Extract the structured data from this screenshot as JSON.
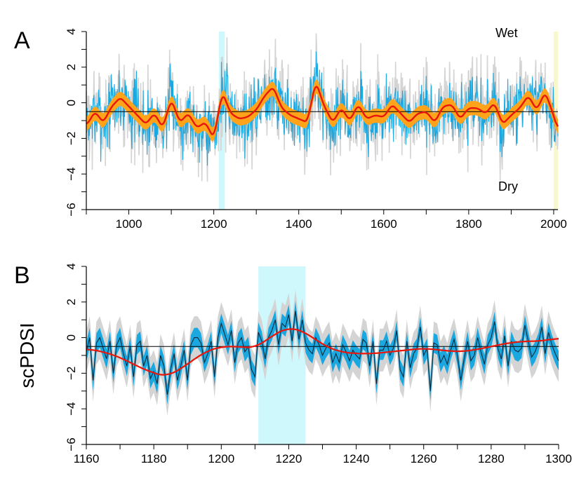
{
  "figure": {
    "ylabel": "scPDSI",
    "colors": {
      "envelope_gray": "#d4d4d4",
      "annual_blue": "#1ba8e0",
      "smooth_band_orange": "#ffa31a",
      "smooth_line_red": "#e8170c",
      "highlight_cyan": "#cff8fc",
      "highlight_yellow": "#f8f8cc",
      "panel_b_line": "#0a2a3a",
      "reference_line": "#000000"
    }
  },
  "chart_data": [
    {
      "type": "line",
      "panel_label": "A",
      "xlabel": "",
      "ylabel": "scPDSI",
      "xlim": [
        900,
        2010
      ],
      "ylim": [
        -6,
        4
      ],
      "x_ticks": [
        "1000",
        "1200",
        "1400",
        "1600",
        "1800",
        "2000"
      ],
      "y_ticks": [
        "4",
        "2",
        "0",
        "−2",
        "−4",
        "−6"
      ],
      "grid": false,
      "reference_line_y": -0.5,
      "annotations": [
        {
          "text": "Wet",
          "x": 1890,
          "y": 3.8
        },
        {
          "text": "Dry",
          "x": 1890,
          "y": -4.9
        }
      ],
      "highlight_spans": [
        {
          "x0": 1212,
          "x1": 1226,
          "color": "cyan"
        },
        {
          "x0": 2000,
          "x1": 2010,
          "color": "yellow"
        }
      ],
      "series": [
        {
          "name": "",
          "style": "red line with orange uncertainty band; annual values in blue with gray envelope",
          "x": [
            900,
            920,
            940,
            960,
            980,
            1000,
            1020,
            1040,
            1060,
            1080,
            1100,
            1120,
            1140,
            1160,
            1180,
            1200,
            1220,
            1240,
            1260,
            1280,
            1300,
            1320,
            1340,
            1360,
            1380,
            1400,
            1420,
            1440,
            1460,
            1480,
            1500,
            1520,
            1540,
            1560,
            1580,
            1600,
            1620,
            1640,
            1660,
            1680,
            1700,
            1720,
            1740,
            1760,
            1780,
            1800,
            1820,
            1840,
            1860,
            1880,
            1900,
            1920,
            1940,
            1960,
            1980,
            2000,
            2010
          ],
          "values": [
            -1.3,
            -0.5,
            -1.1,
            -0.2,
            0.3,
            -0.2,
            -0.7,
            -1.2,
            -0.6,
            -1.4,
            0.2,
            -1.1,
            -0.6,
            -1.4,
            -1.1,
            -2.0,
            0.6,
            -0.6,
            -0.9,
            -0.8,
            -0.4,
            0.4,
            0.9,
            -0.3,
            -0.7,
            -0.9,
            -1.1,
            1.2,
            -0.2,
            -1.1,
            -0.3,
            -1.0,
            -0.1,
            -0.9,
            -0.7,
            -0.8,
            -0.1,
            -0.6,
            -1.1,
            -0.6,
            -0.5,
            -1.1,
            -0.2,
            -0.1,
            -0.9,
            -0.3,
            -0.3,
            -0.6,
            0.0,
            -1.2,
            -0.7,
            -0.3,
            0.4,
            -0.4,
            0.6,
            -0.7,
            -1.6
          ],
          "band_halfwidth": 0.4,
          "annual_amplitude": 2.4,
          "envelope_amplitude": 3.5
        }
      ]
    },
    {
      "type": "line",
      "panel_label": "B",
      "xlabel": "",
      "ylabel": "scPDSI",
      "xlim": [
        1160,
        1300
      ],
      "ylim": [
        -6,
        4
      ],
      "x_ticks": [
        "1160",
        "1180",
        "1200",
        "1220",
        "1240",
        "1260",
        "1280",
        "1300"
      ],
      "y_ticks": [
        "4",
        "2",
        "0",
        "−2",
        "−4",
        "−6"
      ],
      "grid": false,
      "reference_line_y": -0.5,
      "highlight_spans": [
        {
          "x0": 1211,
          "x1": 1225,
          "color": "cyan"
        }
      ],
      "series": [
        {
          "name": "",
          "style": "dark annual line with blue band and gray envelope",
          "x": [
            1160,
            1161,
            1162,
            1163,
            1164,
            1165,
            1166,
            1167,
            1168,
            1169,
            1170,
            1171,
            1172,
            1173,
            1174,
            1175,
            1176,
            1177,
            1178,
            1179,
            1180,
            1181,
            1182,
            1183,
            1184,
            1185,
            1186,
            1187,
            1188,
            1189,
            1190,
            1191,
            1192,
            1193,
            1194,
            1195,
            1196,
            1197,
            1198,
            1199,
            1200,
            1201,
            1202,
            1203,
            1204,
            1205,
            1206,
            1207,
            1208,
            1209,
            1210,
            1211,
            1212,
            1213,
            1214,
            1215,
            1216,
            1217,
            1218,
            1219,
            1220,
            1221,
            1222,
            1223,
            1224,
            1225,
            1226,
            1227,
            1228,
            1229,
            1230,
            1231,
            1232,
            1233,
            1234,
            1235,
            1236,
            1237,
            1238,
            1239,
            1240,
            1241,
            1242,
            1243,
            1244,
            1245,
            1246,
            1247,
            1248,
            1249,
            1250,
            1251,
            1252,
            1253,
            1254,
            1255,
            1256,
            1257,
            1258,
            1259,
            1260,
            1261,
            1262,
            1263,
            1264,
            1265,
            1266,
            1267,
            1268,
            1269,
            1270,
            1271,
            1272,
            1273,
            1274,
            1275,
            1276,
            1277,
            1278,
            1279,
            1280,
            1281,
            1282,
            1283,
            1284,
            1285,
            1286,
            1287,
            1288,
            1289,
            1290,
            1291,
            1292,
            1293,
            1294,
            1295,
            1296,
            1297,
            1298,
            1299,
            1300
          ],
          "values": [
            -0.8,
            0.0,
            -2.4,
            -0.3,
            0.0,
            -0.6,
            -1.2,
            -0.2,
            -2.0,
            -0.4,
            0.0,
            -0.9,
            -1.6,
            -0.5,
            -2.2,
            -0.4,
            -0.2,
            -1.6,
            -1.0,
            -2.3,
            -1.9,
            -2.6,
            -1.0,
            -1.6,
            -3.2,
            -1.8,
            -0.9,
            -2.4,
            -1.6,
            -0.7,
            -2.4,
            -0.4,
            0.0,
            0.0,
            -0.3,
            -1.4,
            -0.9,
            -0.2,
            -2.2,
            0.0,
            0.8,
            0.2,
            -0.4,
            0.4,
            -1.4,
            -0.3,
            0.0,
            -0.8,
            -0.5,
            -1.8,
            -2.2,
            0.3,
            -0.2,
            -1.2,
            0.0,
            0.4,
            1.0,
            -0.4,
            0.8,
            0.6,
            1.3,
            -0.2,
            1.5,
            -0.1,
            1.0,
            -0.3,
            -0.7,
            -0.9,
            0.0,
            -0.4,
            -1.0,
            -0.6,
            -0.3,
            -1.4,
            -0.9,
            -1.4,
            -0.4,
            -0.8,
            -1.3,
            -0.7,
            -1.0,
            -1.2,
            -0.1,
            -0.3,
            -1.6,
            -0.2,
            -2.6,
            -0.7,
            -0.7,
            -0.2,
            -1.0,
            -0.6,
            0.4,
            -1.8,
            -2.2,
            -0.2,
            -1.7,
            -0.9,
            -0.6,
            0.6,
            -1.0,
            -0.6,
            -3.0,
            -0.3,
            -0.4,
            -1.4,
            -1.0,
            -1.5,
            -0.7,
            -0.1,
            -1.0,
            -2.4,
            -1.2,
            -0.2,
            -1.3,
            -1.0,
            0.0,
            -0.8,
            -1.5,
            -0.4,
            0.0,
            0.9,
            -0.6,
            -1.2,
            0.1,
            -1.6,
            -0.2,
            -0.7,
            -0.8,
            -0.6,
            0.7,
            -0.2,
            -1.1,
            -0.8,
            -0.3,
            0.6,
            -0.9,
            0.3,
            -0.4,
            -0.9,
            -1.3
          ]
        },
        {
          "name": "",
          "style": "smoothed red line",
          "x": [
            1160,
            1165,
            1170,
            1175,
            1180,
            1184,
            1190,
            1195,
            1200,
            1205,
            1210,
            1215,
            1220,
            1225,
            1230,
            1235,
            1240,
            1245,
            1250,
            1255,
            1260,
            1265,
            1270,
            1275,
            1280,
            1285,
            1290,
            1295,
            1300
          ],
          "values": [
            -0.6,
            -0.8,
            -1.1,
            -1.6,
            -2.0,
            -2.2,
            -1.5,
            -0.8,
            -0.5,
            -0.5,
            -0.6,
            0.1,
            0.6,
            0.3,
            -0.4,
            -0.8,
            -0.9,
            -0.9,
            -0.8,
            -0.7,
            -0.6,
            -0.7,
            -0.8,
            -0.7,
            -0.5,
            -0.3,
            -0.2,
            -0.2,
            0.0
          ]
        }
      ]
    }
  ]
}
